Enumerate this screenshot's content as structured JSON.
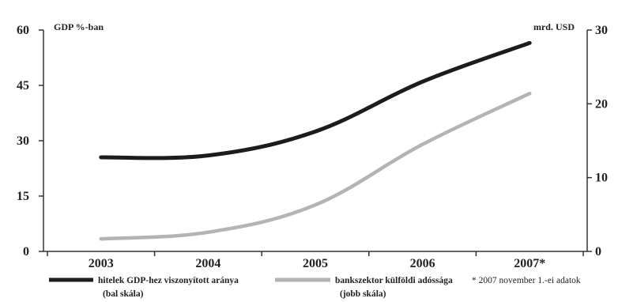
{
  "chart_data": {
    "type": "line",
    "title": "",
    "categories": [
      "2003",
      "2004",
      "2005",
      "2006",
      "2007*"
    ],
    "y_left": {
      "label": "GDP %-ban",
      "ticks": [
        "0",
        "15",
        "30",
        "45",
        "60"
      ],
      "range": [
        0,
        60
      ]
    },
    "y_right": {
      "label": "mrd. USD",
      "ticks": [
        "0",
        "10",
        "20",
        "30"
      ],
      "range": [
        0,
        30
      ]
    },
    "series": [
      {
        "name": "hitelek GDP-hez viszonyított aránya",
        "name_line2": "(bal skála)",
        "axis": "left",
        "color": "#1c1c1c",
        "values": [
          25.5,
          26,
          32.5,
          46,
          56.5
        ]
      },
      {
        "name": "bankszektor külföldi adóssága",
        "name_line2": "(jobb skála)",
        "axis": "right",
        "color": "#b4b4b4",
        "values": [
          1.7,
          2.6,
          6.3,
          14.5,
          21.4
        ]
      }
    ],
    "footnote": "* 2007 november 1.-ei adatok",
    "grid": false,
    "legend_position": "bottom"
  }
}
